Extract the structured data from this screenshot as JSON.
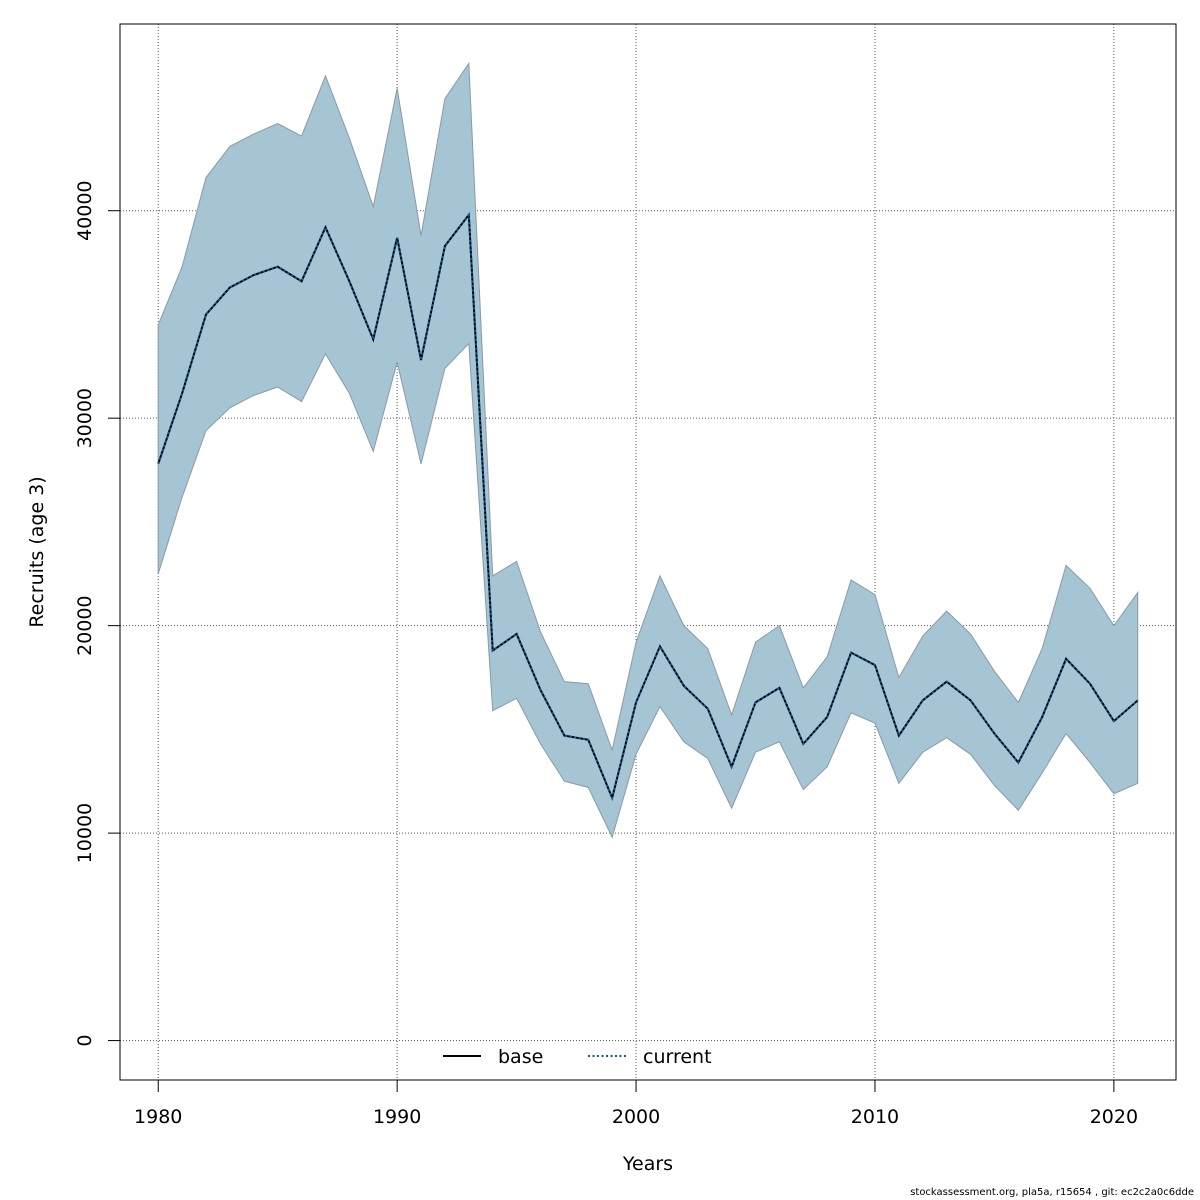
{
  "chart_data": {
    "type": "area",
    "xlabel": "Years",
    "ylabel": "Recruits (age 3)",
    "xlim": [
      1978.4,
      1982.6
    ],
    "ylim": [
      -1900,
      49000
    ],
    "x_ticks": [
      1980,
      1990,
      2000,
      2010,
      2020
    ],
    "y_ticks": [
      0,
      10000,
      20000,
      30000,
      40000
    ],
    "grid": true,
    "legend_position": "bottom-center",
    "band_color": "#a5c4d4",
    "x": [
      1980,
      1981,
      1982,
      1983,
      1984,
      1985,
      1986,
      1987,
      1988,
      1989,
      1990,
      1991,
      1992,
      1993,
      1994,
      1995,
      1996,
      1997,
      1998,
      1999,
      2000,
      2001,
      2002,
      2003,
      2004,
      2005,
      2006,
      2007,
      2008,
      2009,
      2010,
      2011,
      2012,
      2013,
      2014,
      2015,
      2016,
      2017,
      2018,
      2019,
      2020,
      2021
    ],
    "lower": [
      22500,
      26200,
      29400,
      30500,
      31100,
      31500,
      30800,
      33100,
      31200,
      28400,
      32700,
      27800,
      32400,
      33600,
      15900,
      16500,
      14300,
      12500,
      12200,
      9800,
      13800,
      16100,
      14400,
      13600,
      11200,
      13900,
      14400,
      12100,
      13200,
      15800,
      15300,
      12400,
      13900,
      14600,
      13800,
      12300,
      11100,
      12900,
      14800,
      13400,
      11900,
      12400
    ],
    "upper": [
      34500,
      37300,
      41600,
      43100,
      43700,
      44200,
      43600,
      46500,
      43500,
      40200,
      45900,
      38800,
      45400,
      47100,
      22400,
      23100,
      19700,
      17300,
      17200,
      14000,
      19200,
      22400,
      20000,
      18900,
      15700,
      19200,
      20000,
      17000,
      18500,
      22200,
      21500,
      17500,
      19500,
      20700,
      19600,
      17800,
      16300,
      18900,
      22900,
      21800,
      20000,
      21600
    ],
    "series": [
      {
        "name": "base",
        "style": "solid",
        "color": "#000000",
        "values": [
          27800,
          31200,
          35000,
          36300,
          36900,
          37300,
          36600,
          39200,
          36600,
          33800,
          38700,
          32800,
          38300,
          39800,
          18800,
          19600,
          16900,
          14700,
          14500,
          11700,
          16300,
          19000,
          17100,
          16000,
          13200,
          16300,
          17000,
          14300,
          15600,
          18700,
          18100,
          14700,
          16400,
          17300,
          16400,
          14800,
          13400,
          15600,
          18400,
          17200,
          15400,
          16400
        ]
      },
      {
        "name": "current",
        "style": "dotted",
        "color": "#0a5fa0",
        "values": [
          27800,
          31200,
          35000,
          36300,
          36900,
          37300,
          36600,
          39200,
          36600,
          33800,
          38700,
          32800,
          38300,
          39800,
          18800,
          19600,
          16900,
          14700,
          14500,
          11700,
          16300,
          19000,
          17100,
          16000,
          13200,
          16300,
          17000,
          14300,
          15600,
          18700,
          18100,
          14700,
          16400,
          17300,
          16400,
          14800,
          13400,
          15600,
          18400,
          17200,
          15400,
          16400
        ]
      }
    ]
  },
  "footer": "stockassessment.org, pla5a, r15654 , git: ec2c2a0c6dde"
}
